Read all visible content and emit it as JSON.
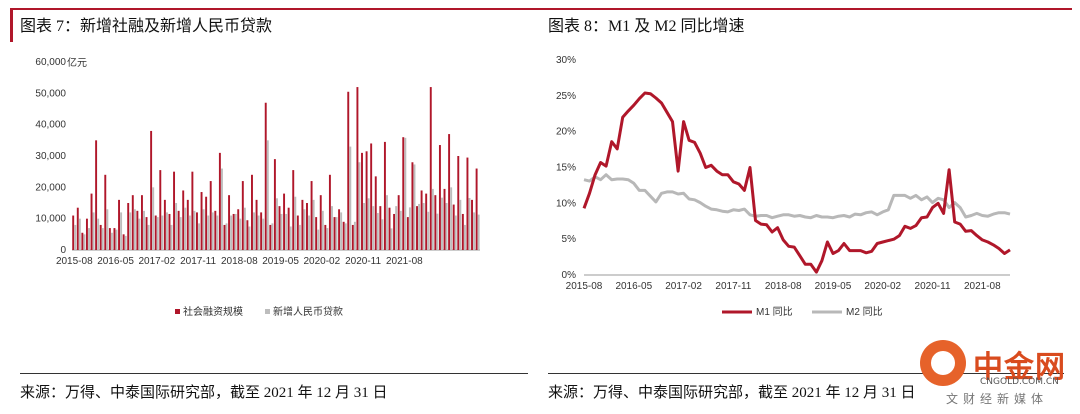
{
  "titles": {
    "left": "图表 7：新增社融及新增人民币贷款",
    "right": "图表 8：M1 及 M2 同比增速"
  },
  "sources": {
    "left": "来源：万得、中泰国际研究部，截至 2021 年 12 月 31 日",
    "right": "来源：万得、中泰国际研究部，截至 2021 年 12 月 31 日"
  },
  "watermark": {
    "name": "中金网",
    "url": "CNGOLD.COM.CN",
    "sub": "文财经新媒体",
    "logo_icon": "cngold-logo-icon",
    "logo_color": "#e6622a"
  },
  "colors": {
    "accent": "#b0172a",
    "social_financing": "#b0172a",
    "rmb_loans": "#bdbdbd",
    "m1": "#b0172a",
    "m2": "#b8b8b8"
  },
  "chart_data": [
    {
      "type": "bar",
      "unit_label": "亿元",
      "ylim": [
        0,
        60000
      ],
      "yticks": [
        "60,000",
        "50,000",
        "40,000",
        "30,000",
        "20,000",
        "10,000",
        "0"
      ],
      "ytick_values": [
        60000,
        50000,
        40000,
        30000,
        20000,
        10000,
        0
      ],
      "xtick_labels": [
        "2015-08",
        "2016-05",
        "2017-02",
        "2017-11",
        "2018-08",
        "2019-05",
        "2020-02",
        "2020-11",
        "2021-08"
      ],
      "start_month": "2015-08",
      "legend": [
        "社会融资规模",
        "新增人民币贷款"
      ],
      "legend_position": "bottom",
      "series": [
        {
          "name": "社会融资规模",
          "values": [
            11000,
            13500,
            5500,
            10000,
            18000,
            35000,
            8000,
            24000,
            7000,
            7000,
            16000,
            5000,
            15000,
            17500,
            12500,
            17500,
            10500,
            38000,
            11000,
            25500,
            16000,
            11500,
            25000,
            12500,
            19000,
            16000,
            25000,
            12000,
            18500,
            17000,
            22000,
            12500,
            31000,
            8000,
            17500,
            11500,
            13000,
            22000,
            9500,
            24000,
            16000,
            12000,
            47000,
            8000,
            29000,
            14000,
            18000,
            13500,
            25500,
            11000,
            16000,
            15000,
            22000,
            10500,
            17500,
            8000,
            24000,
            10500,
            13000,
            9000,
            50500,
            8000,
            52000,
            31000,
            31500,
            34000,
            23500,
            14000,
            34500,
            13500,
            11500,
            17500,
            36000,
            10500,
            28000,
            14000,
            19000,
            18000,
            52000,
            17500,
            33500,
            19500,
            37000,
            14500,
            30000,
            11500,
            29500,
            16000,
            26000
          ],
          "note": "estimated from chart"
        },
        {
          "name": "新增人民币贷款",
          "values": [
            8000,
            10000,
            5000,
            7000,
            12000,
            10000,
            7000,
            13000,
            5500,
            6500,
            12000,
            4500,
            12000,
            13000,
            10000,
            12500,
            8000,
            20000,
            10500,
            11000,
            12000,
            8000,
            15000,
            10500,
            13500,
            11000,
            12500,
            8500,
            13000,
            11000,
            12000,
            11000,
            26000,
            8500,
            11000,
            11500,
            10000,
            13500,
            7500,
            12000,
            11000,
            10000,
            35000,
            8500,
            16500,
            11500,
            11500,
            7500,
            17000,
            8000,
            13000,
            11000,
            16000,
            6500,
            12500,
            7000,
            14000,
            10500,
            12000,
            8500,
            33000,
            9000,
            28000,
            15000,
            16500,
            14000,
            11800,
            9800,
            17500,
            6900,
            14000,
            12500,
            35800,
            13600,
            27300,
            14700,
            15000,
            12200,
            19500,
            11600,
            16700,
            15000,
            20000,
            11000,
            16000,
            8000,
            16600,
            12000,
            11300
          ]
        }
      ]
    },
    {
      "type": "line",
      "ylim": [
        0,
        30
      ],
      "yticks": [
        "30%",
        "25%",
        "20%",
        "15%",
        "10%",
        "5%",
        "0%"
      ],
      "ytick_values": [
        30,
        25,
        20,
        15,
        10,
        5,
        0
      ],
      "xtick_labels": [
        "2015-08",
        "2016-05",
        "2017-02",
        "2017-11",
        "2018-08",
        "2019-05",
        "2020-02",
        "2020-11",
        "2021-08"
      ],
      "start_month": "2015-08",
      "legend": [
        "M1 同比",
        "M2 同比"
      ],
      "legend_position": "bottom",
      "series": [
        {
          "name": "M1 同比",
          "values": [
            9.3,
            11.4,
            14.0,
            15.7,
            15.2,
            18.6,
            17.6,
            22.0,
            22.9,
            23.7,
            24.6,
            25.4,
            25.3,
            24.7,
            24.0,
            22.7,
            21.4,
            14.5,
            21.4,
            18.8,
            18.5,
            17.0,
            15.0,
            15.3,
            14.5,
            14.0,
            14.0,
            13.0,
            12.7,
            11.8,
            15.0,
            7.6,
            7.1,
            7.0,
            6.0,
            6.6,
            4.9,
            4.0,
            3.9,
            2.7,
            1.5,
            1.5,
            0.4,
            2.0,
            4.6,
            3.0,
            3.4,
            4.4,
            3.4,
            3.4,
            3.4,
            3.1,
            3.3,
            4.4,
            4.6,
            4.8,
            5.0,
            5.5,
            6.8,
            6.5,
            6.9,
            8.0,
            8.1,
            9.4,
            10.0,
            8.6,
            14.7,
            7.4,
            7.1,
            6.1,
            6.2,
            5.5,
            4.9,
            4.6,
            4.2,
            3.7,
            3.0,
            3.5
          ]
        },
        {
          "name": "M2 同比",
          "values": [
            13.3,
            13.1,
            13.7,
            13.3,
            14.0,
            13.3,
            13.4,
            13.4,
            13.3,
            12.8,
            11.8,
            11.8,
            11.0,
            10.2,
            11.4,
            11.6,
            11.6,
            11.3,
            11.4,
            10.6,
            10.5,
            10.1,
            9.6,
            9.2,
            9.1,
            8.9,
            8.8,
            9.1,
            9.0,
            9.2,
            8.4,
            8.2,
            8.3,
            8.3,
            8.0,
            8.2,
            8.4,
            8.4,
            8.2,
            8.3,
            8.1,
            8.0,
            8.3,
            8.1,
            8.1,
            8.0,
            8.2,
            8.3,
            8.1,
            8.5,
            8.4,
            8.7,
            8.8,
            8.4,
            8.8,
            9.1,
            11.1,
            11.1,
            11.1,
            10.7,
            11.1,
            10.5,
            10.9,
            10.1,
            10.7,
            10.5,
            9.4,
            10.1,
            9.4,
            8.1,
            8.3,
            8.6,
            8.3,
            8.2,
            8.5,
            8.7,
            8.7,
            8.5
          ]
        }
      ]
    }
  ]
}
